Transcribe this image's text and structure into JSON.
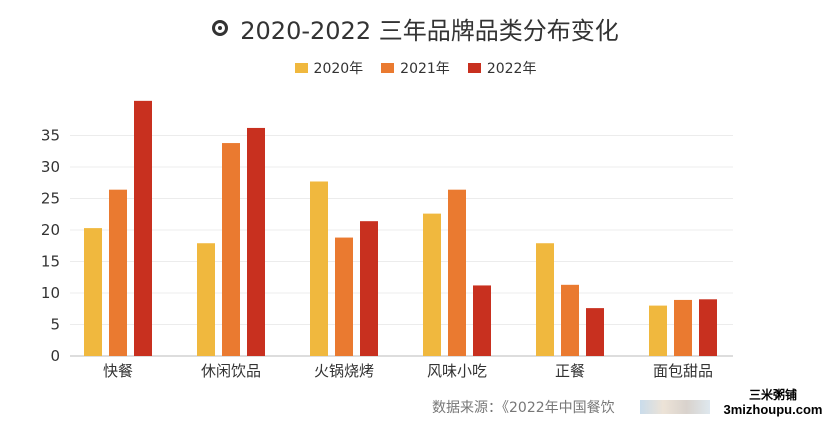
{
  "chart_data": {
    "type": "bar",
    "title": "2020-2022 三年品牌品类分布变化",
    "categories": [
      "快餐",
      "休闲饮品",
      "火锅烧烤",
      "风味小吃",
      "正餐",
      "面包甜品"
    ],
    "series": [
      {
        "name": "2020年",
        "color": "#f0b83e",
        "values": [
          20.3,
          17.9,
          27.7,
          22.6,
          17.9,
          8.0
        ]
      },
      {
        "name": "2021年",
        "color": "#ea7a30",
        "values": [
          26.4,
          33.8,
          18.8,
          26.4,
          11.3,
          8.9
        ]
      },
      {
        "name": "2022年",
        "color": "#c8301f",
        "values": [
          40.5,
          36.2,
          21.4,
          11.2,
          7.6,
          9.0
        ]
      }
    ],
    "yticks": [
      0,
      5,
      10,
      15,
      20,
      25,
      30,
      35
    ],
    "ylim": [
      0,
      41
    ],
    "grid": true,
    "legend_position": "top-center"
  },
  "source_text": "数据来源：《2022年中国餐饮",
  "watermark": {
    "line1": "三米粥铺",
    "line2": "3mizhoupu.com"
  },
  "title_icon": "target-circle-icon"
}
